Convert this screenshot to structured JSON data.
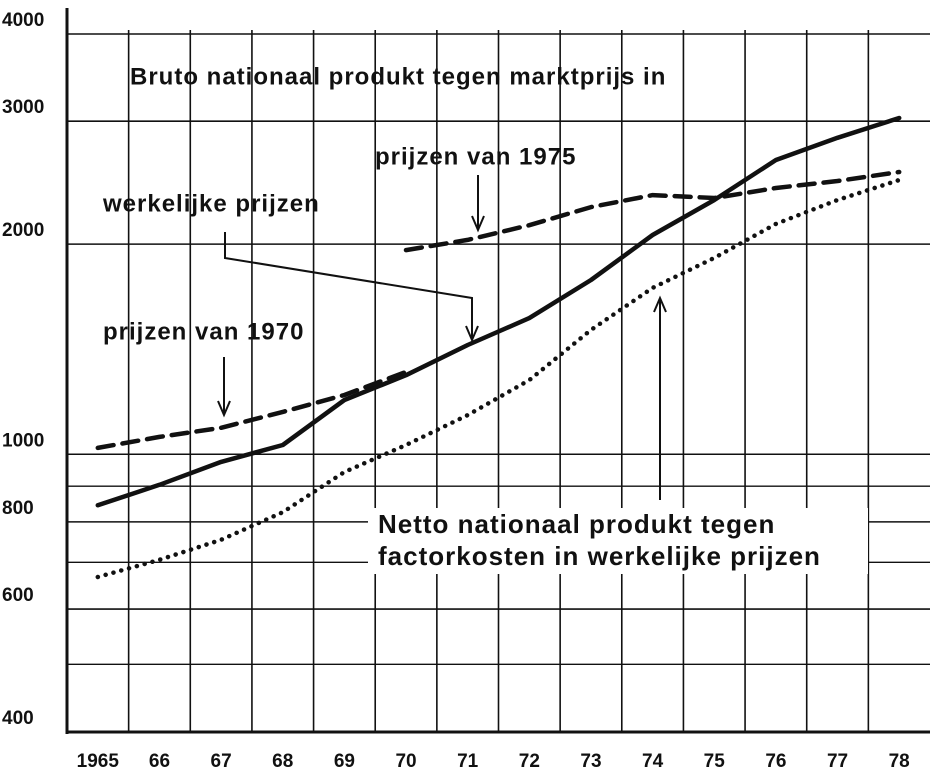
{
  "chart_data": {
    "type": "line",
    "title": "Bruto nationaal produkt tegen marktprijs in",
    "x": [
      1965,
      1966,
      1967,
      1968,
      1969,
      1970,
      1971,
      1972,
      1973,
      1974,
      1975,
      1976,
      1977,
      1978
    ],
    "series": [
      {
        "name": "werkelijke prijzen",
        "color": "#111111",
        "style": "solid",
        "values": [
          845,
          904,
          975,
          1031,
          1196,
          1298,
          1434,
          1567,
          1777,
          2061,
          2313,
          2640,
          2840,
          3032
        ]
      },
      {
        "name": "prijzen van 1970",
        "color": "#111111",
        "style": "dashed",
        "values": [
          1021,
          1059,
          1091,
          1150,
          1216,
          1312,
          null,
          null,
          null,
          null,
          null,
          null,
          null,
          null
        ]
      },
      {
        "name": "prijzen van 1975",
        "color": "#111111",
        "style": "dashed",
        "values": [
          null,
          null,
          null,
          null,
          null,
          1961,
          2028,
          2129,
          2260,
          2351,
          2329,
          2407,
          2463,
          2537
        ]
      },
      {
        "color": "#111111",
        "style": "dotted",
        "values": [
          667,
          706,
          754,
          826,
          943,
          1031,
          1138,
          1277,
          1507,
          1731,
          1911,
          2138,
          2313,
          2471
        ]
      }
    ],
    "annotations": [
      "Netto nationaal produkt tegen",
      "factorkosten in werkelijke prijzen"
    ],
    "xlim": [
      1964.5,
      1978.5
    ],
    "xticks": [
      1965,
      {
        "value": 1966,
        "label": "66"
      },
      {
        "value": 1967,
        "label": "67"
      },
      {
        "value": 1968,
        "label": "68"
      },
      {
        "value": 1969,
        "label": "69"
      },
      {
        "value": 1970,
        "label": "70"
      },
      {
        "value": 1971,
        "label": "71"
      },
      {
        "value": 1972,
        "label": "72"
      },
      {
        "value": 1973,
        "label": "73"
      },
      {
        "value": 1974,
        "label": "74"
      },
      {
        "value": 1975,
        "label": "75"
      },
      {
        "value": 1976,
        "label": "76"
      },
      {
        "value": 1977,
        "label": "77"
      },
      {
        "value": 1978,
        "label": "78"
      }
    ],
    "ylim": [
      400,
      4000
    ],
    "yticks": [
      400,
      600,
      800,
      1000,
      2000,
      3000,
      4000
    ],
    "yminor_grid": [
      500,
      700,
      900
    ],
    "log_scale_y": true,
    "grid": true
  }
}
